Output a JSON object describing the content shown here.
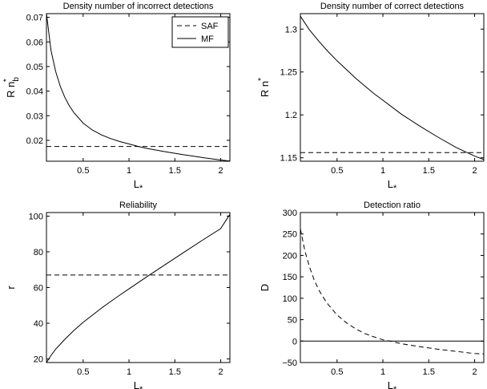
{
  "chart_data": [
    {
      "type": "line",
      "title": "Density number of incorrect detections",
      "xlabel": "L*",
      "ylabel": "R n*b",
      "xlim": [
        0.1,
        2.1
      ],
      "ylim": [
        0.0115,
        0.0715
      ],
      "xticks": [
        0.5,
        1,
        1.5,
        2
      ],
      "xtick_labels": [
        "0.5",
        "1",
        "1.5",
        "2"
      ],
      "yticks": [
        0.02,
        0.03,
        0.04,
        0.05,
        0.06,
        0.07
      ],
      "ytick_labels": [
        "0.02",
        "0.03",
        "0.04",
        "0.05",
        "0.06",
        "0.07"
      ],
      "legend": {
        "placement": "top-right",
        "entries": [
          "SAF",
          "MF"
        ]
      },
      "series": [
        {
          "name": "SAF",
          "style": "dashed",
          "color": "#000000",
          "x": [
            0.1,
            2.1
          ],
          "y": [
            0.0175,
            0.0175
          ]
        },
        {
          "name": "MF",
          "style": "solid",
          "color": "#000000",
          "x": [
            0.1,
            0.15,
            0.2,
            0.25,
            0.3,
            0.35,
            0.4,
            0.5,
            0.6,
            0.7,
            0.8,
            0.9,
            1.0,
            1.1,
            1.2,
            1.4,
            1.6,
            1.8,
            2.0,
            2.1
          ],
          "y": [
            0.0715,
            0.0565,
            0.048,
            0.042,
            0.0375,
            0.034,
            0.0312,
            0.027,
            0.0242,
            0.0222,
            0.0207,
            0.0195,
            0.0185,
            0.0175,
            0.0167,
            0.0153,
            0.0141,
            0.013,
            0.012,
            0.0116
          ]
        }
      ]
    },
    {
      "type": "line",
      "title": "Density number of correct detections",
      "xlabel": "L*",
      "ylabel": "R n*",
      "xlim": [
        0.1,
        2.1
      ],
      "ylim": [
        1.146,
        1.318
      ],
      "xticks": [
        0.5,
        1,
        1.5,
        2
      ],
      "xtick_labels": [
        "0.5",
        "1",
        "1.5",
        "2"
      ],
      "yticks": [
        1.15,
        1.2,
        1.25,
        1.3
      ],
      "ytick_labels": [
        "1.15",
        "1.2",
        "1.25",
        "1.3"
      ],
      "series": [
        {
          "style": "dashed",
          "color": "#000000",
          "x": [
            0.1,
            2.1
          ],
          "y": [
            1.156,
            1.156
          ]
        },
        {
          "style": "solid",
          "color": "#000000",
          "x": [
            0.1,
            0.2,
            0.3,
            0.4,
            0.5,
            0.6,
            0.7,
            0.8,
            0.9,
            1.0,
            1.2,
            1.4,
            1.6,
            1.8,
            2.0,
            2.1
          ],
          "y": [
            1.315,
            1.299,
            1.286,
            1.274,
            1.263,
            1.253,
            1.243,
            1.234,
            1.225,
            1.217,
            1.201,
            1.187,
            1.174,
            1.162,
            1.152,
            1.148
          ]
        }
      ]
    },
    {
      "type": "line",
      "title": "Reliability",
      "xlabel": "L*",
      "ylabel": "r",
      "xlim": [
        0.1,
        2.1
      ],
      "ylim": [
        18,
        102
      ],
      "xticks": [
        0.5,
        1,
        1.5,
        2
      ],
      "xtick_labels": [
        "0.5",
        "1",
        "1.5",
        "2"
      ],
      "yticks": [
        20,
        40,
        60,
        80,
        100
      ],
      "ytick_labels": [
        "20",
        "40",
        "60",
        "80",
        "100"
      ],
      "series": [
        {
          "style": "dashed",
          "color": "#000000",
          "x": [
            0.1,
            2.1
          ],
          "y": [
            67,
            67
          ]
        },
        {
          "style": "solid",
          "color": "#000000",
          "x": [
            0.1,
            0.15,
            0.2,
            0.3,
            0.4,
            0.5,
            0.6,
            0.7,
            0.8,
            0.9,
            1.0,
            1.2,
            1.4,
            1.6,
            1.8,
            2.0,
            2.1
          ],
          "y": [
            18,
            22,
            25.5,
            31,
            36,
            40.5,
            44.5,
            48.5,
            52.2,
            55.8,
            59.3,
            66.2,
            73,
            79.8,
            86.5,
            93,
            101
          ]
        }
      ]
    },
    {
      "type": "line",
      "title": "Detection ratio",
      "xlabel": "L*",
      "ylabel": "D",
      "xlim": [
        0.1,
        2.1
      ],
      "ylim": [
        -50,
        300
      ],
      "xticks": [
        0.5,
        1,
        1.5,
        2
      ],
      "xtick_labels": [
        "0.5",
        "1",
        "1.5",
        "2"
      ],
      "yticks": [
        -50,
        0,
        50,
        100,
        150,
        200,
        250,
        300
      ],
      "ytick_labels": [
        "−50",
        "0",
        "50",
        "100",
        "150",
        "200",
        "250",
        "300"
      ],
      "series": [
        {
          "style": "solid",
          "color": "#000000",
          "x": [
            0.1,
            2.1
          ],
          "y": [
            0,
            0
          ]
        },
        {
          "style": "dashed",
          "color": "#000000",
          "x": [
            0.1,
            0.15,
            0.2,
            0.25,
            0.3,
            0.35,
            0.4,
            0.5,
            0.6,
            0.7,
            0.8,
            0.9,
            1.0,
            1.1,
            1.2,
            1.4,
            1.6,
            1.8,
            2.0,
            2.1
          ],
          "y": [
            262,
            210,
            173,
            143,
            120,
            102,
            86,
            61,
            43,
            29,
            18,
            10,
            3,
            -1,
            -6,
            -13,
            -19,
            -24,
            -29,
            -30
          ]
        }
      ]
    }
  ]
}
